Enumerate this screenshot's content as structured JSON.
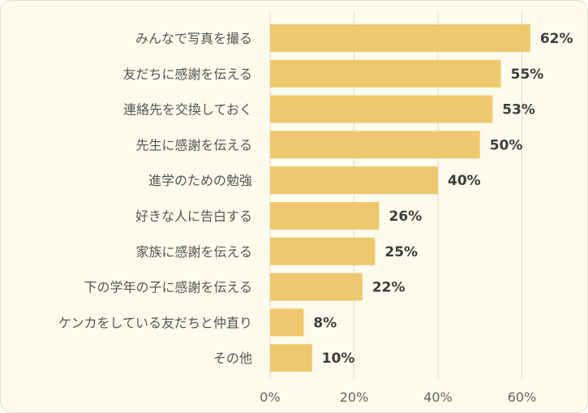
{
  "chart_data": {
    "type": "bar",
    "orientation": "horizontal",
    "title": "",
    "xlabel": "",
    "ylabel": "",
    "categories": [
      "みんなで写真を撮る",
      "友だちに感謝を伝える",
      "連絡先を交換しておく",
      "先生に感謝を伝える",
      "進学のための勉強",
      "好きな人に告白する",
      "家族に感謝を伝える",
      "下の学年の子に感謝を伝える",
      "ケンカをしている友だちと仲直り",
      "その他"
    ],
    "values": [
      62,
      55,
      53,
      50,
      40,
      26,
      25,
      22,
      8,
      10
    ],
    "value_labels": [
      "62%",
      "55%",
      "53%",
      "50%",
      "40%",
      "26%",
      "25%",
      "22%",
      "8%",
      "10%"
    ],
    "xlim": [
      0,
      70
    ],
    "ticks": [
      0,
      20,
      40,
      60
    ],
    "tick_labels": [
      "0%",
      "20%",
      "40%",
      "60%"
    ],
    "grid": true,
    "legend": "none",
    "colors": {
      "bar": "#eec86e",
      "background": "#fdfbec",
      "grid": "#dedbd0"
    }
  }
}
